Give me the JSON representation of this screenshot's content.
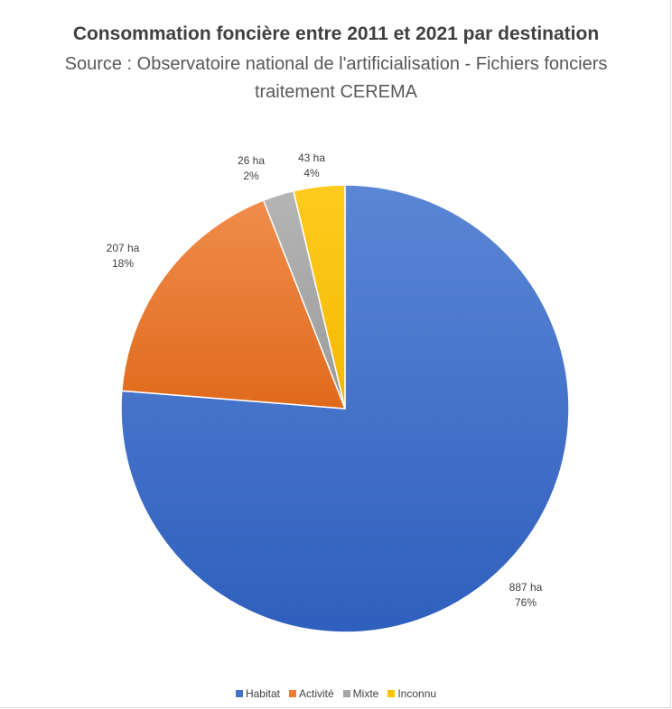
{
  "header": {
    "title": "Consommation foncière entre 2011 et 2021 par destination",
    "subtitle_line1": "Source : Observatoire national de l'artificialisation - Fichiers fonciers",
    "subtitle_line2": "traitement CEREMA"
  },
  "chart_data": {
    "type": "pie",
    "title": "Consommation foncière entre 2011 et 2021 par destination",
    "subtitle": "Source : Observatoire national de l'artificialisation - Fichiers fonciers traitement CEREMA",
    "categories": [
      "Habitat",
      "Activité",
      "Mixte",
      "Inconnu"
    ],
    "values": [
      887,
      207,
      26,
      43
    ],
    "unit": "ha",
    "data_labels": [
      {
        "value": "887 ha",
        "percent": "76%"
      },
      {
        "value": "207 ha",
        "percent": "18%"
      },
      {
        "value": "26 ha",
        "percent": "2%"
      },
      {
        "value": "43 ha",
        "percent": "4%"
      }
    ],
    "colors": [
      "#4472c4",
      "#ed7d31",
      "#a5a5a5",
      "#ffc000"
    ],
    "legend_position": "bottom"
  }
}
